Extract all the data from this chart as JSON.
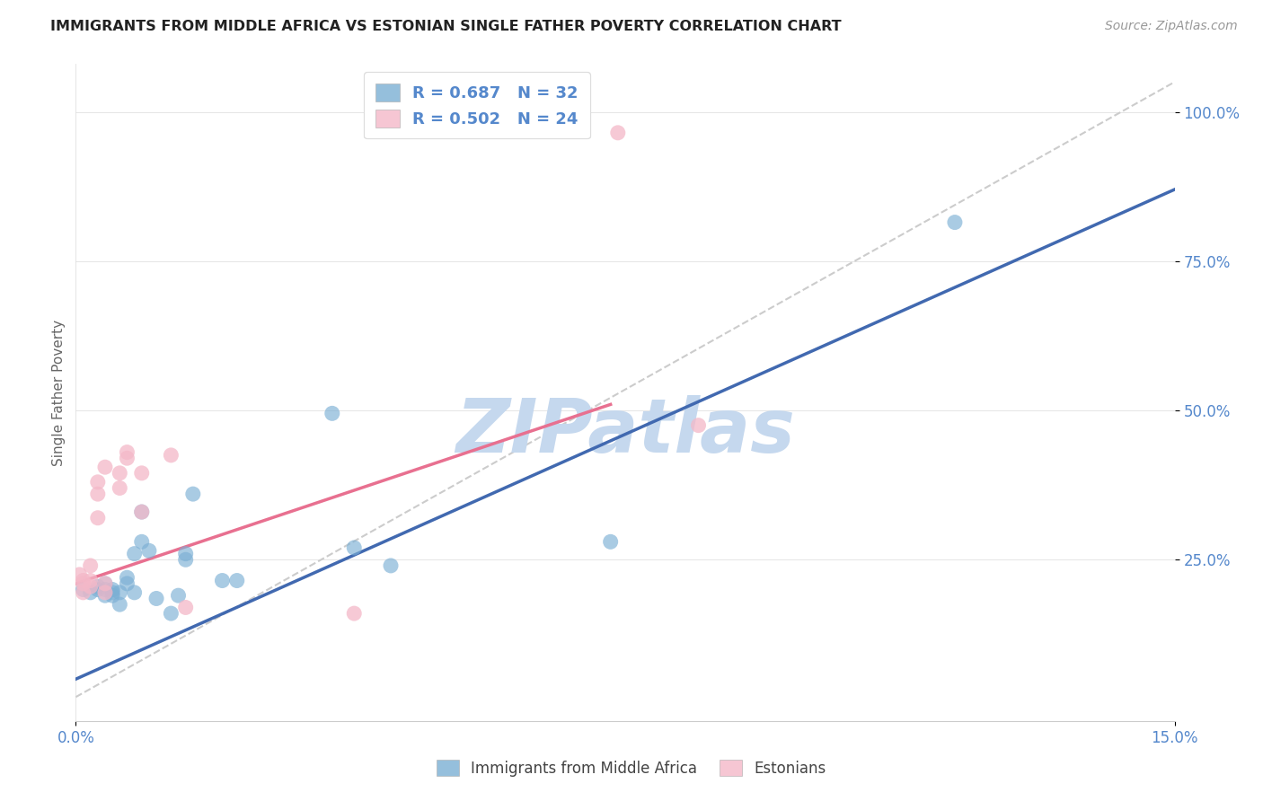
{
  "title": "IMMIGRANTS FROM MIDDLE AFRICA VS ESTONIAN SINGLE FATHER POVERTY CORRELATION CHART",
  "source": "Source: ZipAtlas.com",
  "ylabel": "Single Father Poverty",
  "yticks": [
    "25.0%",
    "50.0%",
    "75.0%",
    "100.0%"
  ],
  "ytick_vals": [
    0.25,
    0.5,
    0.75,
    1.0
  ],
  "xrange": [
    0.0,
    0.15
  ],
  "yrange": [
    -0.02,
    1.08
  ],
  "legend1_label": "R = 0.687   N = 32",
  "legend2_label": "R = 0.502   N = 24",
  "blue_color": "#7bafd4",
  "pink_color": "#f4b8c8",
  "blue_line_color": "#4169b0",
  "pink_line_color": "#e87090",
  "diag_line_color": "#cccccc",
  "tick_color": "#5588cc",
  "watermark": "ZIPatlas",
  "watermark_color": "#c5d8ee",
  "blue_scatter_x": [
    0.001,
    0.002,
    0.003,
    0.003,
    0.004,
    0.004,
    0.004,
    0.005,
    0.005,
    0.005,
    0.006,
    0.006,
    0.007,
    0.007,
    0.008,
    0.008,
    0.009,
    0.009,
    0.01,
    0.011,
    0.013,
    0.014,
    0.015,
    0.015,
    0.016,
    0.02,
    0.022,
    0.035,
    0.038,
    0.043,
    0.073,
    0.12
  ],
  "blue_scatter_y": [
    0.2,
    0.195,
    0.205,
    0.2,
    0.2,
    0.19,
    0.21,
    0.195,
    0.19,
    0.2,
    0.175,
    0.195,
    0.21,
    0.22,
    0.195,
    0.26,
    0.28,
    0.33,
    0.265,
    0.185,
    0.16,
    0.19,
    0.26,
    0.25,
    0.36,
    0.215,
    0.215,
    0.495,
    0.27,
    0.24,
    0.28,
    0.815
  ],
  "pink_scatter_x": [
    0.0005,
    0.001,
    0.001,
    0.001,
    0.002,
    0.002,
    0.002,
    0.003,
    0.003,
    0.003,
    0.004,
    0.004,
    0.004,
    0.006,
    0.006,
    0.007,
    0.007,
    0.009,
    0.009,
    0.013,
    0.015,
    0.038,
    0.074,
    0.085
  ],
  "pink_scatter_y": [
    0.225,
    0.215,
    0.195,
    0.21,
    0.215,
    0.205,
    0.24,
    0.32,
    0.36,
    0.38,
    0.21,
    0.195,
    0.405,
    0.37,
    0.395,
    0.42,
    0.43,
    0.33,
    0.395,
    0.425,
    0.17,
    0.16,
    0.965,
    0.475
  ],
  "blue_line_x": [
    0.0,
    0.15
  ],
  "blue_line_y": [
    0.05,
    0.87
  ],
  "pink_line_x": [
    0.0,
    0.073
  ],
  "pink_line_y": [
    0.21,
    0.51
  ],
  "diag_line_x": [
    0.0,
    0.15
  ],
  "diag_line_y": [
    0.02,
    1.05
  ],
  "xtick_left_label": "0.0%",
  "xtick_right_label": "15.0%"
}
